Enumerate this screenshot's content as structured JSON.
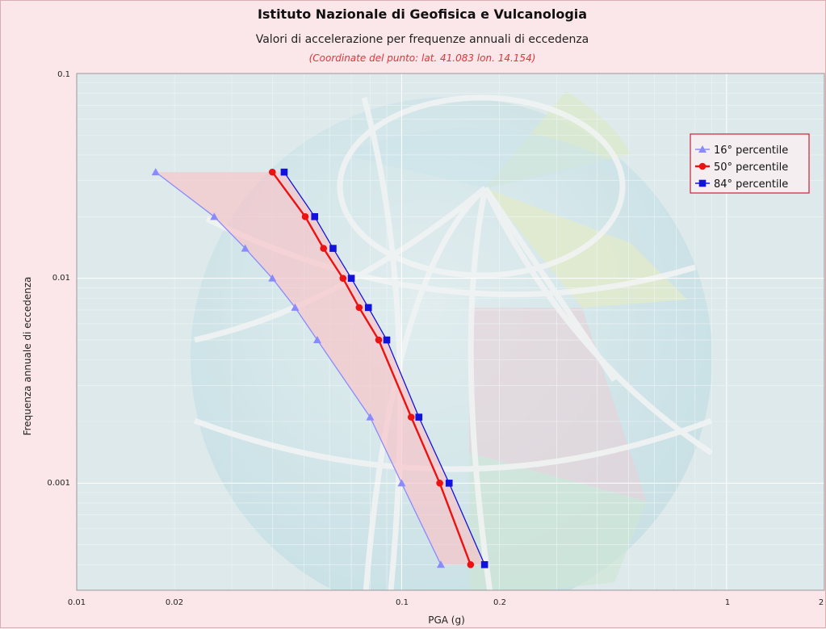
{
  "chart_data": {
    "type": "line",
    "title": "Istituto Nazionale di Geofisica e Vulcanologia",
    "subtitle": "Valori di accelerazione per frequenze annuali di eccedenza",
    "note": "(Coordinate del punto: lat. 41.083 lon. 14.154)",
    "xlabel": "PGA (g)",
    "ylabel": "Frequenza annuale di eccedenza",
    "x_scale": "log",
    "y_scale": "log",
    "xlim": [
      0.01,
      2
    ],
    "ylim": [
      0.0003,
      0.1
    ],
    "x_ticks": [
      "0.01",
      "0.02",
      "0.1",
      "0.2",
      "1",
      "2"
    ],
    "y_ticks": [
      "0.1",
      "0.01",
      "0.001"
    ],
    "grid": true,
    "legend_position": "top-right",
    "band_between": [
      "16° percentile",
      "84° percentile"
    ],
    "series": [
      {
        "name": "16° percentile",
        "color": "#8a8aff",
        "marker": "triangle",
        "x": [
          0.0175,
          0.0265,
          0.033,
          0.04,
          0.047,
          0.055,
          0.08,
          0.1,
          0.132
        ],
        "y": [
          0.033,
          0.02,
          0.014,
          0.01,
          0.0072,
          0.005,
          0.0021,
          0.001,
          0.0004
        ]
      },
      {
        "name": "50° percentile",
        "color": "#ee1111",
        "marker": "circle",
        "x": [
          0.04,
          0.0505,
          0.0575,
          0.066,
          0.074,
          0.085,
          0.107,
          0.131,
          0.163
        ],
        "y": [
          0.033,
          0.02,
          0.014,
          0.01,
          0.0072,
          0.005,
          0.0021,
          0.001,
          0.0004
        ]
      },
      {
        "name": "84° percentile",
        "color": "#1212dd",
        "marker": "square",
        "x": [
          0.0435,
          0.054,
          0.0615,
          0.07,
          0.079,
          0.09,
          0.113,
          0.14,
          0.18
        ],
        "y": [
          0.033,
          0.02,
          0.014,
          0.01,
          0.0072,
          0.005,
          0.0021,
          0.001,
          0.0004
        ]
      }
    ]
  }
}
